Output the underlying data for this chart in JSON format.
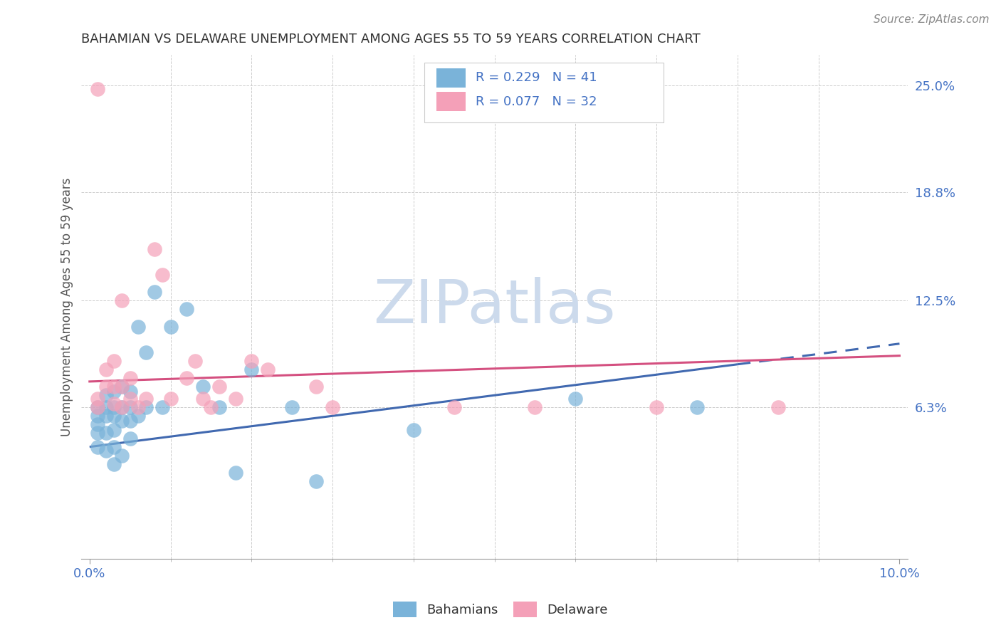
{
  "title": "BAHAMIAN VS DELAWARE UNEMPLOYMENT AMONG AGES 55 TO 59 YEARS CORRELATION CHART",
  "source": "Source: ZipAtlas.com",
  "ylabel": "Unemployment Among Ages 55 to 59 years",
  "xlim": [
    -0.001,
    0.101
  ],
  "ylim": [
    -0.025,
    0.268
  ],
  "xtick_vals": [
    0.0,
    0.1
  ],
  "xtick_labels": [
    "0.0%",
    "10.0%"
  ],
  "ytick_values": [
    0.063,
    0.125,
    0.188,
    0.25
  ],
  "ytick_labels": [
    "6.3%",
    "12.5%",
    "18.8%",
    "25.0%"
  ],
  "bahamians_color": "#7ab3d9",
  "delaware_color": "#f4a0b8",
  "bahamians_line_color": "#4169b0",
  "delaware_line_color": "#d45080",
  "watermark_text": "ZIPatlas",
  "watermark_color": "#ccdaec",
  "grid_color": "#cccccc",
  "title_color": "#333333",
  "source_color": "#888888",
  "right_tick_color": "#4472c4",
  "R_bahamians": 0.229,
  "N_bahamians": 41,
  "R_delaware": 0.077,
  "N_delaware": 32,
  "bahamians_x": [
    0.001,
    0.001,
    0.001,
    0.001,
    0.001,
    0.002,
    0.002,
    0.002,
    0.002,
    0.002,
    0.003,
    0.003,
    0.003,
    0.003,
    0.003,
    0.003,
    0.004,
    0.004,
    0.004,
    0.004,
    0.005,
    0.005,
    0.005,
    0.005,
    0.006,
    0.006,
    0.007,
    0.007,
    0.008,
    0.009,
    0.01,
    0.012,
    0.014,
    0.016,
    0.018,
    0.02,
    0.025,
    0.028,
    0.04,
    0.06,
    0.075
  ],
  "bahamians_y": [
    0.04,
    0.048,
    0.053,
    0.058,
    0.063,
    0.038,
    0.048,
    0.058,
    0.063,
    0.07,
    0.03,
    0.04,
    0.05,
    0.058,
    0.063,
    0.072,
    0.035,
    0.055,
    0.063,
    0.075,
    0.045,
    0.055,
    0.063,
    0.072,
    0.058,
    0.11,
    0.063,
    0.095,
    0.13,
    0.063,
    0.11,
    0.12,
    0.075,
    0.063,
    0.025,
    0.085,
    0.063,
    0.02,
    0.05,
    0.068,
    0.063
  ],
  "delaware_x": [
    0.001,
    0.001,
    0.001,
    0.002,
    0.002,
    0.003,
    0.003,
    0.003,
    0.004,
    0.004,
    0.004,
    0.005,
    0.005,
    0.006,
    0.007,
    0.008,
    0.009,
    0.01,
    0.012,
    0.013,
    0.014,
    0.015,
    0.016,
    0.018,
    0.02,
    0.022,
    0.028,
    0.03,
    0.045,
    0.055,
    0.07,
    0.085
  ],
  "delaware_y": [
    0.248,
    0.063,
    0.068,
    0.075,
    0.085,
    0.065,
    0.075,
    0.09,
    0.063,
    0.075,
    0.125,
    0.068,
    0.08,
    0.063,
    0.068,
    0.155,
    0.14,
    0.068,
    0.08,
    0.09,
    0.068,
    0.063,
    0.075,
    0.068,
    0.09,
    0.085,
    0.075,
    0.063,
    0.063,
    0.063,
    0.063,
    0.063
  ]
}
